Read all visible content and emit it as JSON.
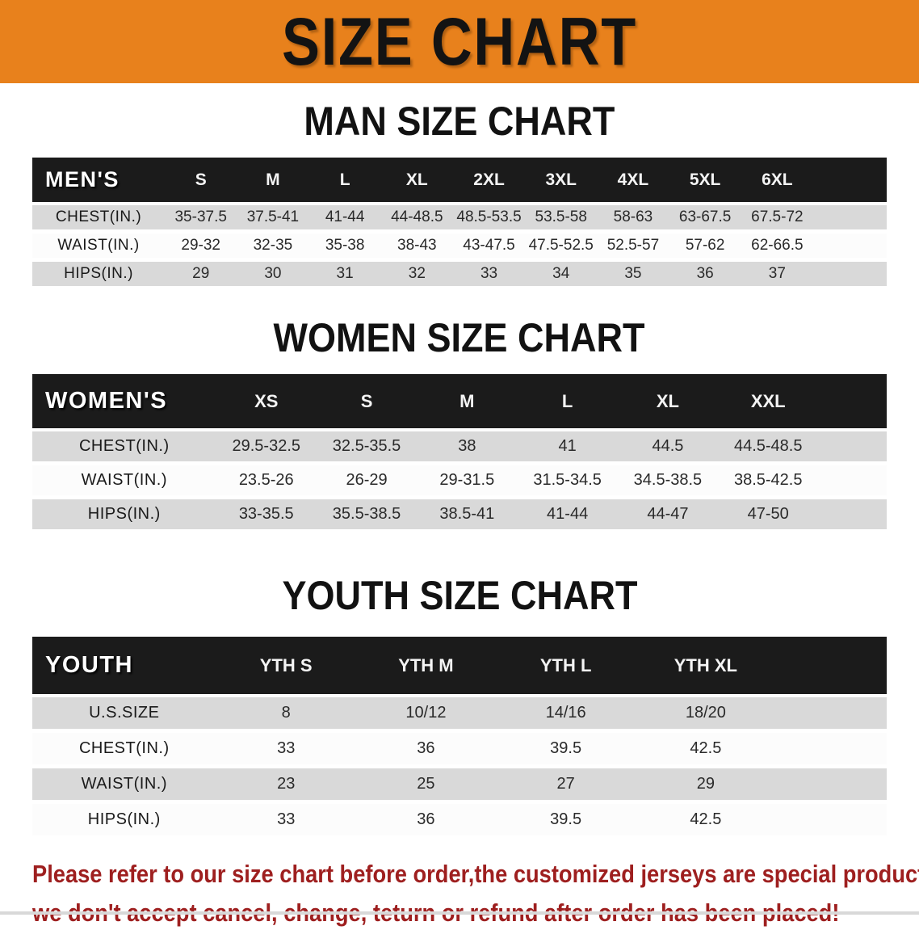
{
  "banner": {
    "title": "SIZE CHART"
  },
  "colors": {
    "banner_bg": "#E8811C",
    "table_header_bg": "#1B1B1B",
    "row_gray": "#D9D9D9",
    "row_white": "#FCFCFC",
    "disclaimer_red": "#9E1F1F"
  },
  "sections": [
    {
      "heading": "MAN SIZE CHART",
      "table": {
        "corner_label": "MEN'S",
        "columns": [
          "S",
          "M",
          "L",
          "XL",
          "2XL",
          "3XL",
          "4XL",
          "5XL",
          "6XL"
        ],
        "rows": [
          {
            "label": "CHEST(IN.)",
            "values": [
              "35-37.5",
              "37.5-41",
              "41-44",
              "44-48.5",
              "48.5-53.5",
              "53.5-58",
              "58-63",
              "63-67.5",
              "67.5-72"
            ]
          },
          {
            "label": "WAIST(IN.)",
            "values": [
              "29-32",
              "32-35",
              "35-38",
              "38-43",
              "43-47.5",
              "47.5-52.5",
              "52.5-57",
              "57-62",
              "62-66.5"
            ]
          },
          {
            "label": "HIPS(IN.)",
            "values": [
              "29",
              "30",
              "31",
              "32",
              "33",
              "34",
              "35",
              "36",
              "37"
            ]
          }
        ]
      }
    },
    {
      "heading": "WOMEN SIZE CHART",
      "table": {
        "corner_label": "WOMEN'S",
        "columns": [
          "XS",
          "S",
          "M",
          "L",
          "XL",
          "XXL"
        ],
        "rows": [
          {
            "label": "CHEST(IN.)",
            "values": [
              "29.5-32.5",
              "32.5-35.5",
              "38",
              "41",
              "44.5",
              "44.5-48.5"
            ]
          },
          {
            "label": "WAIST(IN.)",
            "values": [
              "23.5-26",
              "26-29",
              "29-31.5",
              "31.5-34.5",
              "34.5-38.5",
              "38.5-42.5"
            ]
          },
          {
            "label": "HIPS(IN.)",
            "values": [
              "33-35.5",
              "35.5-38.5",
              "38.5-41",
              "41-44",
              "44-47",
              "47-50"
            ]
          }
        ]
      }
    },
    {
      "heading": "YOUTH SIZE CHART",
      "table": {
        "corner_label": "YOUTH",
        "columns": [
          "YTH S",
          "YTH M",
          "YTH L",
          "YTH XL"
        ],
        "rows": [
          {
            "label": "U.S.SIZE",
            "values": [
              "8",
              "10/12",
              "14/16",
              "18/20"
            ]
          },
          {
            "label": "CHEST(IN.)",
            "values": [
              "33",
              "36",
              "39.5",
              "42.5"
            ]
          },
          {
            "label": "WAIST(IN.)",
            "values": [
              "23",
              "25",
              "27",
              "29"
            ]
          },
          {
            "label": "HIPS(IN.)",
            "values": [
              "33",
              "36",
              "39.5",
              "42.5"
            ]
          }
        ]
      }
    }
  ],
  "disclaimer": {
    "line1": "Please refer to our size chart before order,the customized jerseys are special products,",
    "line2": "we don't accept cancel, change, teturn or refund after order has been placed!"
  }
}
